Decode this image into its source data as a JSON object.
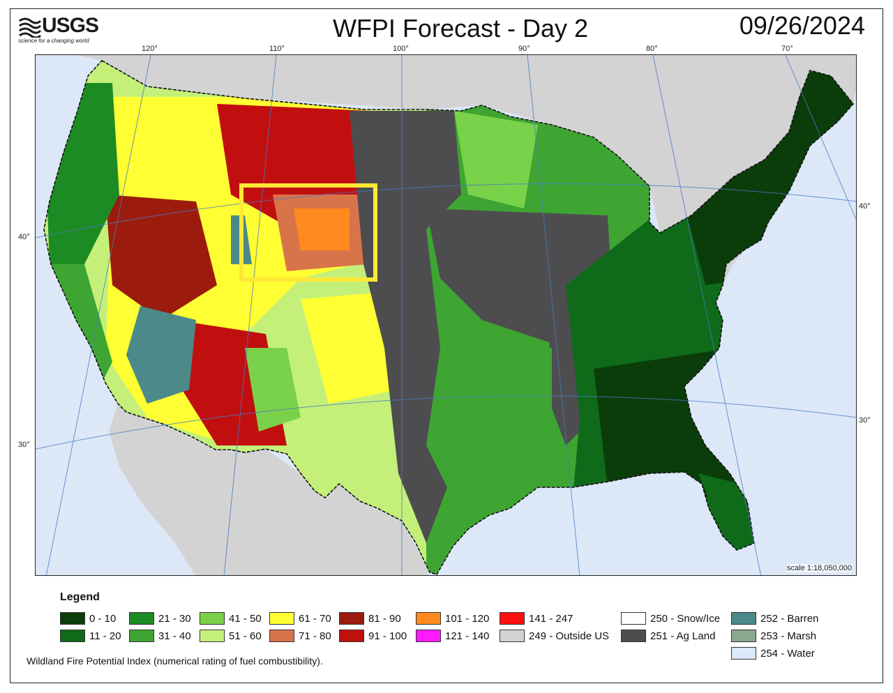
{
  "logo": {
    "name": "USGS",
    "tagline": "science for a changing world"
  },
  "title": "WFPI Forecast - Day 2",
  "date": "09/26/2024",
  "map": {
    "longitude_labels": [
      "120°",
      "110°",
      "100°",
      "90°",
      "80°",
      "70°"
    ],
    "latitude_labels_left": [
      "40°",
      "30°"
    ],
    "latitude_labels_right": [
      "40°",
      "30°"
    ],
    "scale": "scale 1:18,050,000",
    "highlight_color": "#ffe835"
  },
  "legend": {
    "title": "Legend",
    "items": [
      {
        "label": "0 - 10",
        "color": "#0b3d0b"
      },
      {
        "label": "11 - 20",
        "color": "#0f6a1a"
      },
      {
        "label": "21 - 30",
        "color": "#1d8b24"
      },
      {
        "label": "31 - 40",
        "color": "#3ea532"
      },
      {
        "label": "41 - 50",
        "color": "#7ad24a"
      },
      {
        "label": "51 - 60",
        "color": "#c4f07a"
      },
      {
        "label": "61 - 70",
        "color": "#ffff33"
      },
      {
        "label": "71 - 80",
        "color": "#d8744a"
      },
      {
        "label": "81 - 90",
        "color": "#9b1c0c"
      },
      {
        "label": "91 - 100",
        "color": "#c10f0f"
      },
      {
        "label": "101 - 120",
        "color": "#ff8a1f"
      },
      {
        "label": "121 - 140",
        "color": "#ff19ff"
      },
      {
        "label": "141 - 247",
        "color": "#ff1010"
      },
      {
        "label": "249 - Outside US",
        "color": "#d3d3d3"
      },
      {
        "label": "250 - Snow/Ice",
        "color": "#ffffff"
      },
      {
        "label": "251 - Ag Land",
        "color": "#4d4d4f"
      },
      {
        "label": "252 - Barren",
        "color": "#4c8a8a"
      },
      {
        "label": "253 - Marsh",
        "color": "#8aa88f"
      },
      {
        "label": "254 - Water",
        "color": "#dce8fb"
      }
    ]
  },
  "footnote": "Wildland Fire Potential Index (numerical rating of fuel combustibility)."
}
